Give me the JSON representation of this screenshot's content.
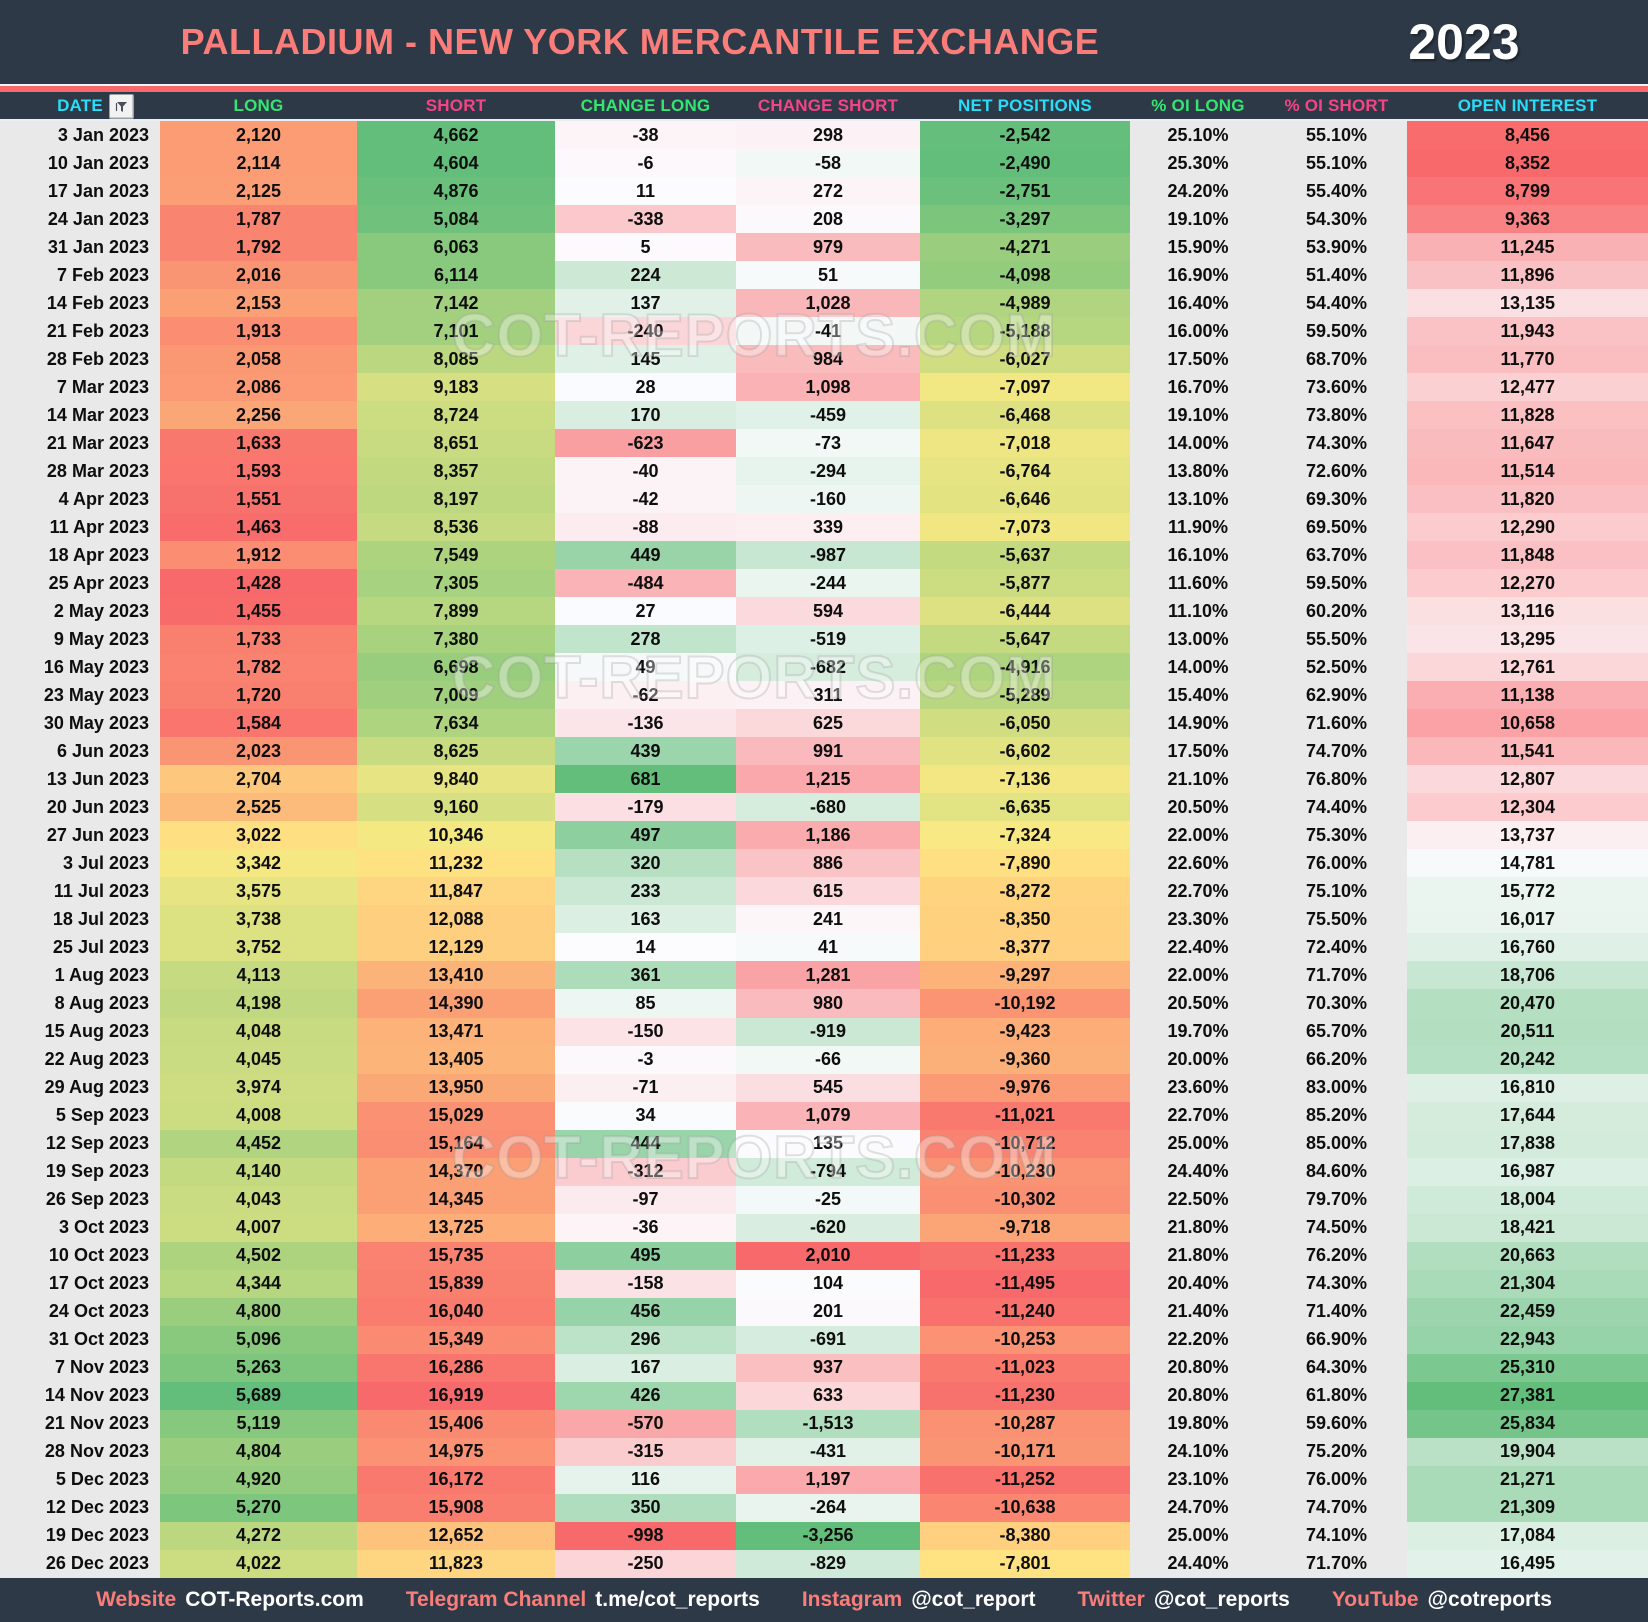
{
  "header": {
    "title": "PALLADIUM - NEW YORK MERCANTILE EXCHANGE",
    "year": "2023"
  },
  "watermark": {
    "text": "COT-REPORTS.COM"
  },
  "colors": {
    "bar_dark": "#2e3947",
    "accent_salmon": "#f8696b",
    "header_cyan": "#29dcf7",
    "header_green": "#33e671",
    "header_pink": "#f54485",
    "heat_red": "#F8696B",
    "heat_yellow": "#FFEB84",
    "heat_green": "#63BE7B",
    "heat_white": "#FCFCFF",
    "flat_gray": "#e9e9e9"
  },
  "chart_data": {
    "type": "table",
    "title": "PALLADIUM - NEW YORK MERCANTILE EXCHANGE",
    "year": "2023",
    "columns": [
      "DATE",
      "LONG",
      "SHORT",
      "CHANGE LONG",
      "CHANGE SHORT",
      "NET POSITIONS",
      "% OI LONG",
      "% OI SHORT",
      "OPEN INTEREST"
    ],
    "rows": [
      [
        "3 Jan 2023",
        2120,
        4662,
        -38,
        298,
        -2542,
        25.1,
        55.1,
        8456
      ],
      [
        "10 Jan 2023",
        2114,
        4604,
        -6,
        -58,
        -2490,
        25.3,
        55.1,
        8352
      ],
      [
        "17 Jan 2023",
        2125,
        4876,
        11,
        272,
        -2751,
        24.2,
        55.4,
        8799
      ],
      [
        "24 Jan 2023",
        1787,
        5084,
        -338,
        208,
        -3297,
        19.1,
        54.3,
        9363
      ],
      [
        "31 Jan 2023",
        1792,
        6063,
        5,
        979,
        -4271,
        15.9,
        53.9,
        11245
      ],
      [
        "7 Feb 2023",
        2016,
        6114,
        224,
        51,
        -4098,
        16.9,
        51.4,
        11896
      ],
      [
        "14 Feb 2023",
        2153,
        7142,
        137,
        1028,
        -4989,
        16.4,
        54.4,
        13135
      ],
      [
        "21 Feb 2023",
        1913,
        7101,
        -240,
        -41,
        -5188,
        16.0,
        59.5,
        11943
      ],
      [
        "28 Feb 2023",
        2058,
        8085,
        145,
        984,
        -6027,
        17.5,
        68.7,
        11770
      ],
      [
        "7 Mar 2023",
        2086,
        9183,
        28,
        1098,
        -7097,
        16.7,
        73.6,
        12477
      ],
      [
        "14 Mar 2023",
        2256,
        8724,
        170,
        -459,
        -6468,
        19.1,
        73.8,
        11828
      ],
      [
        "21 Mar 2023",
        1633,
        8651,
        -623,
        -73,
        -7018,
        14.0,
        74.3,
        11647
      ],
      [
        "28 Mar 2023",
        1593,
        8357,
        -40,
        -294,
        -6764,
        13.8,
        72.6,
        11514
      ],
      [
        "4 Apr 2023",
        1551,
        8197,
        -42,
        -160,
        -6646,
        13.1,
        69.3,
        11820
      ],
      [
        "11 Apr 2023",
        1463,
        8536,
        -88,
        339,
        -7073,
        11.9,
        69.5,
        12290
      ],
      [
        "18 Apr 2023",
        1912,
        7549,
        449,
        -987,
        -5637,
        16.1,
        63.7,
        11848
      ],
      [
        "25 Apr 2023",
        1428,
        7305,
        -484,
        -244,
        -5877,
        11.6,
        59.5,
        12270
      ],
      [
        "2 May 2023",
        1455,
        7899,
        27,
        594,
        -6444,
        11.1,
        60.2,
        13116
      ],
      [
        "9 May 2023",
        1733,
        7380,
        278,
        -519,
        -5647,
        13.0,
        55.5,
        13295
      ],
      [
        "16 May 2023",
        1782,
        6698,
        49,
        -682,
        -4916,
        14.0,
        52.5,
        12761
      ],
      [
        "23 May 2023",
        1720,
        7009,
        -62,
        311,
        -5289,
        15.4,
        62.9,
        11138
      ],
      [
        "30 May 2023",
        1584,
        7634,
        -136,
        625,
        -6050,
        14.9,
        71.6,
        10658
      ],
      [
        "6 Jun 2023",
        2023,
        8625,
        439,
        991,
        -6602,
        17.5,
        74.7,
        11541
      ],
      [
        "13 Jun 2023",
        2704,
        9840,
        681,
        1215,
        -7136,
        21.1,
        76.8,
        12807
      ],
      [
        "20 Jun 2023",
        2525,
        9160,
        -179,
        -680,
        -6635,
        20.5,
        74.4,
        12304
      ],
      [
        "27 Jun 2023",
        3022,
        10346,
        497,
        1186,
        -7324,
        22.0,
        75.3,
        13737
      ],
      [
        "3 Jul 2023",
        3342,
        11232,
        320,
        886,
        -7890,
        22.6,
        76.0,
        14781
      ],
      [
        "11 Jul 2023",
        3575,
        11847,
        233,
        615,
        -8272,
        22.7,
        75.1,
        15772
      ],
      [
        "18 Jul 2023",
        3738,
        12088,
        163,
        241,
        -8350,
        23.3,
        75.5,
        16017
      ],
      [
        "25 Jul 2023",
        3752,
        12129,
        14,
        41,
        -8377,
        22.4,
        72.4,
        16760
      ],
      [
        "1 Aug 2023",
        4113,
        13410,
        361,
        1281,
        -9297,
        22.0,
        71.7,
        18706
      ],
      [
        "8 Aug 2023",
        4198,
        14390,
        85,
        980,
        -10192,
        20.5,
        70.3,
        20470
      ],
      [
        "15 Aug 2023",
        4048,
        13471,
        -150,
        -919,
        -9423,
        19.7,
        65.7,
        20511
      ],
      [
        "22 Aug 2023",
        4045,
        13405,
        -3,
        -66,
        -9360,
        20.0,
        66.2,
        20242
      ],
      [
        "29 Aug 2023",
        3974,
        13950,
        -71,
        545,
        -9976,
        23.6,
        83.0,
        16810
      ],
      [
        "5 Sep 2023",
        4008,
        15029,
        34,
        1079,
        -11021,
        22.7,
        85.2,
        17644
      ],
      [
        "12 Sep 2023",
        4452,
        15164,
        444,
        135,
        -10712,
        25.0,
        85.0,
        17838
      ],
      [
        "19 Sep 2023",
        4140,
        14370,
        -312,
        -794,
        -10230,
        24.4,
        84.6,
        16987
      ],
      [
        "26 Sep 2023",
        4043,
        14345,
        -97,
        -25,
        -10302,
        22.5,
        79.7,
        18004
      ],
      [
        "3 Oct 2023",
        4007,
        13725,
        -36,
        -620,
        -9718,
        21.8,
        74.5,
        18421
      ],
      [
        "10 Oct 2023",
        4502,
        15735,
        495,
        2010,
        -11233,
        21.8,
        76.2,
        20663
      ],
      [
        "17 Oct 2023",
        4344,
        15839,
        -158,
        104,
        -11495,
        20.4,
        74.3,
        21304
      ],
      [
        "24 Oct 2023",
        4800,
        16040,
        456,
        201,
        -11240,
        21.4,
        71.4,
        22459
      ],
      [
        "31 Oct 2023",
        5096,
        15349,
        296,
        -691,
        -10253,
        22.2,
        66.9,
        22943
      ],
      [
        "7 Nov 2023",
        5263,
        16286,
        167,
        937,
        -11023,
        20.8,
        64.3,
        25310
      ],
      [
        "14 Nov 2023",
        5689,
        16919,
        426,
        633,
        -11230,
        20.8,
        61.8,
        27381
      ],
      [
        "21 Nov 2023",
        5119,
        15406,
        -570,
        -1513,
        -10287,
        19.8,
        59.6,
        25834
      ],
      [
        "28 Nov 2023",
        4804,
        14975,
        -315,
        -431,
        -10171,
        24.1,
        75.2,
        19904
      ],
      [
        "5 Dec 2023",
        4920,
        16172,
        116,
        1197,
        -11252,
        23.1,
        76.0,
        21271
      ],
      [
        "12 Dec 2023",
        5270,
        15908,
        350,
        -264,
        -10638,
        24.7,
        74.7,
        21309
      ],
      [
        "19 Dec 2023",
        4272,
        12652,
        -998,
        -3256,
        -8380,
        25.0,
        74.1,
        17084
      ],
      [
        "26 Dec 2023",
        4022,
        11823,
        -250,
        -829,
        -7801,
        24.4,
        71.7,
        16495
      ]
    ]
  },
  "footer": {
    "items": [
      {
        "label": "Website",
        "value": "COT-Reports.com"
      },
      {
        "label": "Telegram Channel",
        "value": "t.me/cot_reports"
      },
      {
        "label": "Instagram",
        "value": "@cot_report"
      },
      {
        "label": "Twitter",
        "value": "@cot_reports"
      },
      {
        "label": "YouTube",
        "value": "@cotreports"
      }
    ]
  }
}
